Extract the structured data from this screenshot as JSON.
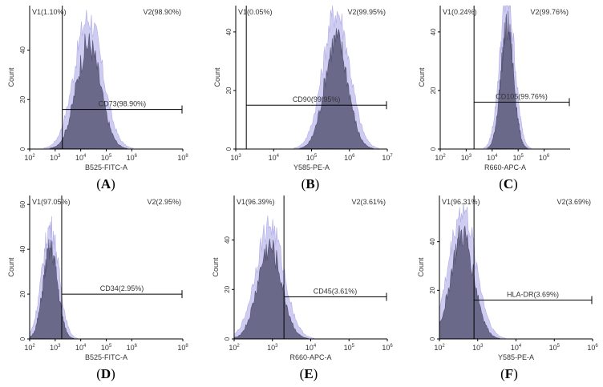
{
  "colors": {
    "outer_fill": "#c9c7ef",
    "inner_fill": "#5a5878",
    "inner_stroke": "#3d3b5a",
    "axis": "#000000",
    "text": "#333333"
  },
  "ylabel": "Count",
  "chart_data": [
    {
      "panel": "A",
      "type": "area",
      "xlabel": "B525-FITC-A",
      "xlog": true,
      "xlim": [
        100,
        100000000
      ],
      "x_ticks": [
        "10^2",
        "10^3",
        "10^4",
        "10^5",
        "10^6",
        "10^8"
      ],
      "y_ticks": [
        "0",
        "20",
        "40"
      ],
      "ylim": [
        0,
        58
      ],
      "gate_left": "V1(1.10%)",
      "gate_right": "V2(98.90%)",
      "gate_marker": "CD73(98.90%)",
      "gate_x": 1900,
      "marker_y": 16,
      "peak_x": 20000,
      "peak_y": 53,
      "hist_width": 0.5
    },
    {
      "panel": "B",
      "type": "area",
      "xlabel": "Y585-PE-A",
      "xlog": true,
      "xlim": [
        1000,
        10000000
      ],
      "x_ticks": [
        "10^3",
        "10^4",
        "10^5",
        "10^6",
        "10^7"
      ],
      "y_ticks": [
        "0",
        "20",
        "40"
      ],
      "ylim": [
        0,
        49
      ],
      "gate_left": "V1(0.05%)",
      "gate_right": "V2(99.95%)",
      "gate_marker": "CD90(99.95%)",
      "gate_x": 1900,
      "marker_y": 15,
      "peak_x": 450000,
      "peak_y": 47,
      "hist_width": 0.32
    },
    {
      "panel": "C",
      "type": "area",
      "xlabel": "R660-APC-A",
      "xlog": true,
      "xlim": [
        100,
        10000000
      ],
      "x_ticks": [
        "10^2",
        "10^3",
        "10^4",
        "10^5",
        "10^6"
      ],
      "y_ticks": [
        "0",
        "20",
        "40"
      ],
      "ylim": [
        0,
        49
      ],
      "gate_left": "V1(0.24%)",
      "gate_right": "V2(99.76%)",
      "gate_marker": "CD105(99.76%)",
      "gate_x": 2000,
      "marker_y": 16,
      "peak_x": 38000,
      "peak_y": 52,
      "hist_width": 0.26
    },
    {
      "panel": "D",
      "type": "area",
      "xlabel": "B525-FITC-A",
      "xlog": true,
      "xlim": [
        100,
        100000000
      ],
      "x_ticks": [
        "10^2",
        "10^3",
        "10^4",
        "10^5",
        "10^6",
        "10^8"
      ],
      "y_ticks": [
        "0",
        "20",
        "40",
        "60"
      ],
      "ylim": [
        0,
        64
      ],
      "gate_left": "V1(97.05%)",
      "gate_right": "V2(2.95%)",
      "gate_marker": "CD34(2.95%)",
      "gate_x": 1800,
      "marker_y": 20,
      "peak_x": 650,
      "peak_y": 50,
      "hist_width": 0.3
    },
    {
      "panel": "E",
      "type": "area",
      "xlabel": "R660-APC-A",
      "xlog": true,
      "xlim": [
        100,
        1000000
      ],
      "x_ticks": [
        "10^2",
        "10^3",
        "10^4",
        "10^5",
        "10^6"
      ],
      "y_ticks": [
        "0",
        "20",
        "40"
      ],
      "ylim": [
        0,
        58
      ],
      "gate_left": "V1(96.39%)",
      "gate_right": "V2(3.61%)",
      "gate_marker": "CD45(3.61%)",
      "gate_x": 2000,
      "marker_y": 17,
      "peak_x": 850,
      "peak_y": 46,
      "hist_width": 0.33
    },
    {
      "panel": "F",
      "type": "area",
      "xlabel": "Y585-PE-A",
      "xlog": true,
      "xlim": [
        100,
        1000000
      ],
      "x_ticks": [
        "10^2",
        "10^3",
        "10^4",
        "10^5",
        "10^6"
      ],
      "y_ticks": [
        "0",
        "20",
        "40"
      ],
      "ylim": [
        0,
        59
      ],
      "gate_left": "V1(96.31%)",
      "gate_right": "V2(3.69%)",
      "gate_marker": "HLA-DR(3.69%)",
      "gate_x": 800,
      "marker_y": 16,
      "peak_x": 400,
      "peak_y": 53,
      "hist_width": 0.32
    }
  ],
  "panel_labels": {
    "a": "A",
    "b": "B",
    "c": "C",
    "d": "D",
    "e": "E",
    "f": "F"
  }
}
